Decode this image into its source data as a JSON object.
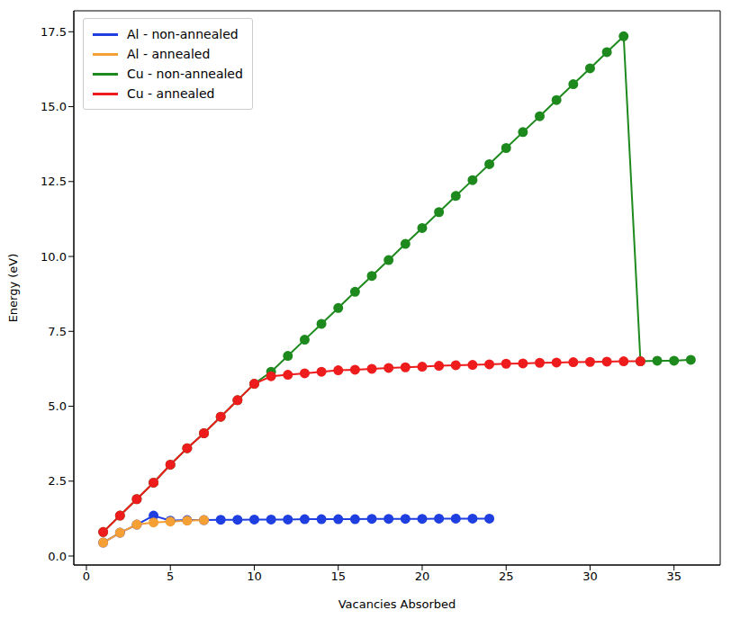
{
  "chart_data": {
    "type": "line",
    "x_label": "Vacancies Absorbed",
    "y_label": "Energy (eV)",
    "x": [
      1,
      2,
      3,
      4,
      5,
      6,
      7,
      8,
      9,
      10,
      11,
      12,
      13,
      14,
      15,
      16,
      17,
      18,
      19,
      20,
      21,
      22,
      23,
      24,
      25,
      26,
      27,
      28,
      29,
      30,
      31,
      32,
      33,
      34,
      35,
      36
    ],
    "series": [
      {
        "name": "Al - non-annealed",
        "color": "#1f3fe0",
        "marker": "circle",
        "values": [
          0.45,
          0.78,
          1.05,
          1.35,
          1.18,
          1.2,
          1.2,
          1.21,
          1.21,
          1.22,
          1.22,
          1.22,
          1.23,
          1.23,
          1.23,
          1.23,
          1.24,
          1.24,
          1.24,
          1.24,
          1.25,
          1.25,
          1.25,
          1.25,
          null,
          null,
          null,
          null,
          null,
          null,
          null,
          null,
          null,
          null,
          null,
          null
        ]
      },
      {
        "name": "Al - annealed",
        "color": "#f5a035",
        "marker": "circle",
        "values": [
          0.45,
          0.78,
          1.05,
          1.12,
          1.15,
          1.18,
          1.2,
          null,
          null,
          null,
          null,
          null,
          null,
          null,
          null,
          null,
          null,
          null,
          null,
          null,
          null,
          null,
          null,
          null,
          null,
          null,
          null,
          null,
          null,
          null,
          null,
          null,
          null,
          null,
          null,
          null
        ]
      },
      {
        "name": "Cu - non-annealed",
        "color": "#1e8a1e",
        "marker": "circle",
        "values": [
          0.8,
          1.35,
          1.9,
          2.45,
          3.05,
          3.6,
          4.1,
          4.65,
          5.2,
          5.75,
          6.15,
          6.68,
          7.22,
          7.75,
          8.28,
          8.82,
          9.35,
          9.88,
          10.42,
          10.95,
          11.48,
          12.02,
          12.55,
          13.08,
          13.62,
          14.15,
          14.68,
          15.22,
          15.75,
          16.28,
          16.82,
          17.35,
          6.5,
          6.52,
          6.52,
          6.55
        ]
      },
      {
        "name": "Cu - annealed",
        "color": "#ee1c1c",
        "marker": "circle",
        "values": [
          0.8,
          1.35,
          1.9,
          2.45,
          3.05,
          3.6,
          4.1,
          4.65,
          5.2,
          5.75,
          6.0,
          6.05,
          6.1,
          6.15,
          6.2,
          6.22,
          6.25,
          6.28,
          6.3,
          6.32,
          6.35,
          6.37,
          6.38,
          6.4,
          6.42,
          6.43,
          6.45,
          6.46,
          6.47,
          6.48,
          6.49,
          6.5,
          6.5,
          null,
          null,
          null
        ]
      }
    ],
    "xlim": [
      -0.75,
      37.75
    ],
    "xticks": [
      0,
      5,
      10,
      15,
      20,
      25,
      30,
      35
    ],
    "ylim": [
      -0.3,
      18.2
    ],
    "yticks": [
      {
        "value": 0,
        "label": "0.0"
      },
      2.5,
      {
        "value": 5,
        "label": "5.0"
      },
      7.5,
      {
        "value": 10,
        "label": "10.0"
      },
      12.5,
      {
        "value": 15,
        "label": "15.0"
      },
      17.5
    ],
    "grid": false,
    "legend": "upper left"
  }
}
